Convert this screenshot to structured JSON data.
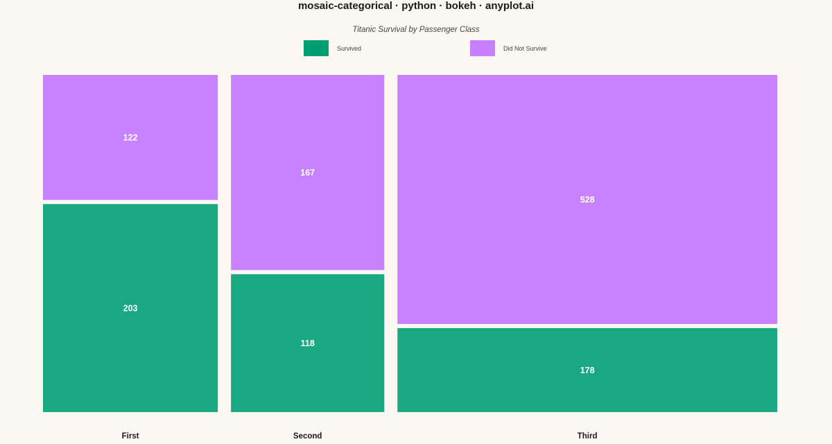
{
  "header": {
    "title": "mosaic-categorical · python · bokeh · anyplot.ai",
    "subtitle": "Titanic Survival by Passenger Class"
  },
  "legend": {
    "items": [
      {
        "label": "Survived",
        "color": "#009E73"
      },
      {
        "label": "Did Not Survive",
        "color": "#C77FFF"
      }
    ]
  },
  "chart_data": {
    "type": "mosaic",
    "title": "mosaic-categorical · python · bokeh · anyplot.ai",
    "subtitle": "Titanic Survival by Passenger Class",
    "legend_position": "top-center",
    "grid": false,
    "categories": [
      "First",
      "Second",
      "Third"
    ],
    "series": [
      {
        "name": "Survived",
        "color": "#1AA882",
        "values": [
          203,
          118,
          178
        ]
      },
      {
        "name": "Did Not Survive",
        "color": "#C882FF",
        "values": [
          122,
          167,
          528
        ]
      }
    ]
  }
}
